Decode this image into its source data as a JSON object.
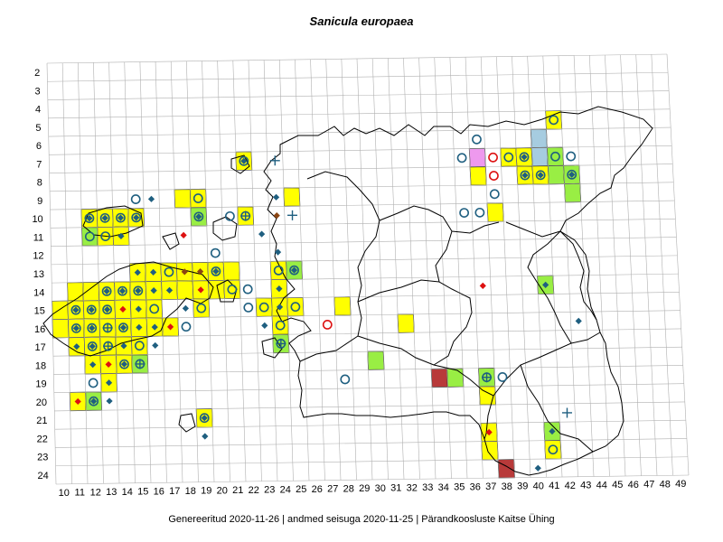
{
  "title": "Sanicula europaea",
  "footer": "Genereeritud 2020-11-26  |  andmed seisuga 2020-11-25  |  Pärandkoosluste Kaitse Ühing",
  "grid": {
    "row_labels": [
      "2",
      "3",
      "4",
      "5",
      "6",
      "7",
      "8",
      "9",
      "10",
      "11",
      "12",
      "13",
      "14",
      "15",
      "16",
      "17",
      "18",
      "19",
      "20",
      "21",
      "22",
      "23",
      "24"
    ],
    "col_labels": [
      "10",
      "11",
      "12",
      "13",
      "14",
      "15",
      "16",
      "17",
      "18",
      "19",
      "20",
      "21",
      "22",
      "23",
      "24",
      "25",
      "26",
      "27",
      "28",
      "29",
      "30",
      "31",
      "32",
      "33",
      "34",
      "35",
      "36",
      "37",
      "38",
      "39",
      "40",
      "41",
      "42",
      "43",
      "44",
      "45",
      "46",
      "47",
      "48",
      "49"
    ]
  },
  "colors": {
    "yellow": "#ffff00",
    "green": "#99ee44",
    "lightblue": "#a6cce0",
    "pink": "#ee99ee",
    "darkred": "#b83a3a",
    "marker_blue": "#1f5f80",
    "marker_red": "#dd1111",
    "marker_brown": "#8b4513"
  },
  "cells": [
    {
      "c": 12,
      "r": 10,
      "fill": "yellow",
      "m": [
        "ring",
        "diamond"
      ]
    },
    {
      "c": 13,
      "r": 10,
      "fill": "yellow",
      "m": [
        "ring",
        "diamond"
      ]
    },
    {
      "c": 14,
      "r": 10,
      "fill": "yellow",
      "m": [
        "ring",
        "diamond"
      ]
    },
    {
      "c": 15,
      "r": 10,
      "fill": "yellow",
      "m": [
        "ring",
        "diamond"
      ]
    },
    {
      "c": 12,
      "r": 11,
      "fill": "green",
      "m": [
        "ring"
      ]
    },
    {
      "c": 13,
      "r": 11,
      "fill": "yellow",
      "m": [
        "ring"
      ]
    },
    {
      "c": 14,
      "r": 11,
      "fill": "yellow",
      "m": [
        "diamond"
      ]
    },
    {
      "c": 15,
      "r": 9,
      "fill": "none",
      "m": [
        "ring"
      ]
    },
    {
      "c": 16,
      "r": 9,
      "fill": "none",
      "m": [
        "diamond"
      ]
    },
    {
      "c": 18,
      "r": 9,
      "fill": "yellow",
      "m": []
    },
    {
      "c": 19,
      "r": 9,
      "fill": "yellow",
      "m": [
        "ring"
      ]
    },
    {
      "c": 19,
      "r": 10,
      "fill": "green",
      "m": [
        "ring",
        "diamond"
      ]
    },
    {
      "c": 18,
      "r": 11,
      "fill": "none",
      "m": [
        "rdiamond"
      ]
    },
    {
      "c": 22,
      "r": 7,
      "fill": "yellow",
      "m": [
        "ring",
        "diamond"
      ]
    },
    {
      "c": 24,
      "r": 7,
      "fill": "none",
      "m": [
        "cross"
      ]
    },
    {
      "c": 24,
      "r": 9,
      "fill": "none",
      "m": [
        "diamond"
      ]
    },
    {
      "c": 25,
      "r": 9,
      "fill": "yellow",
      "m": []
    },
    {
      "c": 21,
      "r": 10,
      "fill": "none",
      "m": [
        "ring"
      ]
    },
    {
      "c": 22,
      "r": 10,
      "fill": "yellow",
      "m": [
        "ring",
        "cross"
      ]
    },
    {
      "c": 24,
      "r": 10,
      "fill": "none",
      "m": [
        "bdiamond"
      ]
    },
    {
      "c": 25,
      "r": 10,
      "fill": "none",
      "m": [
        "cross"
      ]
    },
    {
      "c": 23,
      "r": 11,
      "fill": "none",
      "m": [
        "diamond"
      ]
    },
    {
      "c": 20,
      "r": 12,
      "fill": "none",
      "m": [
        "ring"
      ]
    },
    {
      "c": 24,
      "r": 12,
      "fill": "none",
      "m": [
        "diamond"
      ]
    },
    {
      "c": 15,
      "r": 13,
      "fill": "yellow",
      "m": [
        "diamond"
      ]
    },
    {
      "c": 16,
      "r": 13,
      "fill": "yellow",
      "m": [
        "diamond"
      ]
    },
    {
      "c": 17,
      "r": 13,
      "fill": "yellow",
      "m": [
        "ring"
      ]
    },
    {
      "c": 18,
      "r": 13,
      "fill": "yellow",
      "m": [
        "bdiamond"
      ]
    },
    {
      "c": 19,
      "r": 13,
      "fill": "yellow",
      "m": [
        "bdiamond"
      ]
    },
    {
      "c": 20,
      "r": 13,
      "fill": "yellow",
      "m": [
        "ring",
        "diamond"
      ]
    },
    {
      "c": 21,
      "r": 13,
      "fill": "yellow",
      "m": []
    },
    {
      "c": 24,
      "r": 13,
      "fill": "yellow",
      "m": [
        "ring"
      ]
    },
    {
      "c": 25,
      "r": 13,
      "fill": "green",
      "m": [
        "ring",
        "diamond"
      ]
    },
    {
      "c": 11,
      "r": 14,
      "fill": "yellow",
      "m": []
    },
    {
      "c": 12,
      "r": 14,
      "fill": "yellow",
      "m": []
    },
    {
      "c": 13,
      "r": 14,
      "fill": "yellow",
      "m": [
        "ring",
        "diamond"
      ]
    },
    {
      "c": 14,
      "r": 14,
      "fill": "yellow",
      "m": [
        "ring",
        "diamond"
      ]
    },
    {
      "c": 15,
      "r": 14,
      "fill": "yellow",
      "m": [
        "ring",
        "diamond"
      ]
    },
    {
      "c": 16,
      "r": 14,
      "fill": "yellow",
      "m": [
        "diamond"
      ]
    },
    {
      "c": 17,
      "r": 14,
      "fill": "yellow",
      "m": [
        "diamond"
      ]
    },
    {
      "c": 18,
      "r": 14,
      "fill": "yellow",
      "m": []
    },
    {
      "c": 19,
      "r": 14,
      "fill": "yellow",
      "m": [
        "rdiamond"
      ]
    },
    {
      "c": 20,
      "r": 14,
      "fill": "yellow",
      "m": []
    },
    {
      "c": 21,
      "r": 14,
      "fill": "yellow",
      "m": [
        "ring"
      ]
    },
    {
      "c": 22,
      "r": 14,
      "fill": "none",
      "m": [
        "ring"
      ]
    },
    {
      "c": 24,
      "r": 14,
      "fill": "yellow",
      "m": [
        "diamond"
      ]
    },
    {
      "c": 10,
      "r": 15,
      "fill": "yellow",
      "m": []
    },
    {
      "c": 11,
      "r": 15,
      "fill": "yellow",
      "m": [
        "ring",
        "diamond"
      ]
    },
    {
      "c": 12,
      "r": 15,
      "fill": "yellow",
      "m": [
        "ring",
        "diamond"
      ]
    },
    {
      "c": 13,
      "r": 15,
      "fill": "yellow",
      "m": [
        "ring",
        "diamond"
      ]
    },
    {
      "c": 14,
      "r": 15,
      "fill": "yellow",
      "m": [
        "rdiamond"
      ]
    },
    {
      "c": 15,
      "r": 15,
      "fill": "yellow",
      "m": [
        "diamond"
      ]
    },
    {
      "c": 16,
      "r": 15,
      "fill": "yellow",
      "m": [
        "ring"
      ]
    },
    {
      "c": 18,
      "r": 15,
      "fill": "none",
      "m": [
        "diamond"
      ]
    },
    {
      "c": 19,
      "r": 15,
      "fill": "yellow",
      "m": [
        "ring"
      ]
    },
    {
      "c": 22,
      "r": 15,
      "fill": "none",
      "m": [
        "ring"
      ]
    },
    {
      "c": 23,
      "r": 15,
      "fill": "yellow",
      "m": [
        "ring"
      ]
    },
    {
      "c": 24,
      "r": 15,
      "fill": "yellow",
      "m": [
        "diamond"
      ]
    },
    {
      "c": 25,
      "r": 15,
      "fill": "yellow",
      "m": [
        "ring"
      ]
    },
    {
      "c": 10,
      "r": 16,
      "fill": "yellow",
      "m": []
    },
    {
      "c": 11,
      "r": 16,
      "fill": "yellow",
      "m": [
        "ring",
        "diamond"
      ]
    },
    {
      "c": 12,
      "r": 16,
      "fill": "yellow",
      "m": [
        "ring",
        "diamond"
      ]
    },
    {
      "c": 13,
      "r": 16,
      "fill": "yellow",
      "m": [
        "ring",
        "cross"
      ]
    },
    {
      "c": 14,
      "r": 16,
      "fill": "yellow",
      "m": [
        "ring",
        "diamond"
      ]
    },
    {
      "c": 15,
      "r": 16,
      "fill": "yellow",
      "m": [
        "diamond"
      ]
    },
    {
      "c": 16,
      "r": 16,
      "fill": "yellow",
      "m": [
        "diamond"
      ]
    },
    {
      "c": 17,
      "r": 16,
      "fill": "yellow",
      "m": [
        "rdiamond"
      ]
    },
    {
      "c": 18,
      "r": 16,
      "fill": "none",
      "m": [
        "ring"
      ]
    },
    {
      "c": 23,
      "r": 16,
      "fill": "none",
      "m": [
        "diamond"
      ]
    },
    {
      "c": 24,
      "r": 16,
      "fill": "yellow",
      "m": [
        "ring"
      ]
    },
    {
      "c": 11,
      "r": 17,
      "fill": "yellow",
      "m": [
        "diamond"
      ]
    },
    {
      "c": 12,
      "r": 17,
      "fill": "yellow",
      "m": [
        "ring",
        "diamond"
      ]
    },
    {
      "c": 13,
      "r": 17,
      "fill": "yellow",
      "m": [
        "ring",
        "cross"
      ]
    },
    {
      "c": 14,
      "r": 17,
      "fill": "yellow",
      "m": [
        "diamond"
      ]
    },
    {
      "c": 15,
      "r": 17,
      "fill": "yellow",
      "m": [
        "ring"
      ]
    },
    {
      "c": 16,
      "r": 17,
      "fill": "none",
      "m": [
        "diamond"
      ]
    },
    {
      "c": 24,
      "r": 17,
      "fill": "green",
      "m": [
        "ring",
        "cross"
      ]
    },
    {
      "c": 12,
      "r": 18,
      "fill": "yellow",
      "m": [
        "diamond"
      ]
    },
    {
      "c": 13,
      "r": 18,
      "fill": "yellow",
      "m": [
        "rdiamond"
      ]
    },
    {
      "c": 14,
      "r": 18,
      "fill": "yellow",
      "m": [
        "ring",
        "diamond"
      ]
    },
    {
      "c": 15,
      "r": 18,
      "fill": "green",
      "m": [
        "ring",
        "cross"
      ]
    },
    {
      "c": 12,
      "r": 19,
      "fill": "none",
      "m": [
        "ring"
      ]
    },
    {
      "c": 13,
      "r": 19,
      "fill": "yellow",
      "m": [
        "diamond"
      ]
    },
    {
      "c": 11,
      "r": 20,
      "fill": "yellow",
      "m": [
        "rdiamond"
      ]
    },
    {
      "c": 12,
      "r": 20,
      "fill": "green",
      "m": [
        "ring",
        "diamond"
      ]
    },
    {
      "c": 13,
      "r": 20,
      "fill": "none",
      "m": [
        "diamond"
      ]
    },
    {
      "c": 19,
      "r": 21,
      "fill": "yellow",
      "m": [
        "ring",
        "diamond"
      ]
    },
    {
      "c": 19,
      "r": 22,
      "fill": "none",
      "m": [
        "diamond"
      ]
    },
    {
      "c": 27,
      "r": 16,
      "fill": "none",
      "m": [
        "rring"
      ]
    },
    {
      "c": 28,
      "r": 15,
      "fill": "yellow",
      "m": []
    },
    {
      "c": 28,
      "r": 19,
      "fill": "none",
      "m": [
        "ring"
      ]
    },
    {
      "c": 30,
      "r": 18,
      "fill": "green",
      "m": []
    },
    {
      "c": 32,
      "r": 16,
      "fill": "yellow",
      "m": []
    },
    {
      "c": 34,
      "r": 19,
      "fill": "darkred",
      "m": []
    },
    {
      "c": 35,
      "r": 19,
      "fill": "green",
      "m": []
    },
    {
      "c": 37,
      "r": 14,
      "fill": "none",
      "m": [
        "rdiamond"
      ]
    },
    {
      "c": 36,
      "r": 10,
      "fill": "none",
      "m": [
        "ring"
      ]
    },
    {
      "c": 37,
      "r": 10,
      "fill": "none",
      "m": [
        "ring"
      ]
    },
    {
      "c": 38,
      "r": 10,
      "fill": "yellow",
      "m": []
    },
    {
      "c": 38,
      "r": 9,
      "fill": "none",
      "m": [
        "ring"
      ]
    },
    {
      "c": 38,
      "r": 8,
      "fill": "none",
      "m": [
        "rring"
      ]
    },
    {
      "c": 38,
      "r": 7,
      "fill": "none",
      "m": [
        "rring"
      ]
    },
    {
      "c": 37,
      "r": 6,
      "fill": "none",
      "m": [
        "ring"
      ]
    },
    {
      "c": 36,
      "r": 7,
      "fill": "none",
      "m": [
        "ring"
      ]
    },
    {
      "c": 37,
      "r": 7,
      "fill": "pink",
      "m": []
    },
    {
      "c": 37,
      "r": 8,
      "fill": "yellow",
      "m": []
    },
    {
      "c": 39,
      "r": 7,
      "fill": "yellow",
      "m": [
        "ring"
      ]
    },
    {
      "c": 40,
      "r": 7,
      "fill": "yellow",
      "m": [
        "ring",
        "diamond"
      ]
    },
    {
      "c": 41,
      "r": 6,
      "fill": "lightblue",
      "m": []
    },
    {
      "c": 41,
      "r": 7,
      "fill": "lightblue",
      "m": []
    },
    {
      "c": 42,
      "r": 5,
      "fill": "yellow",
      "m": [
        "ring"
      ]
    },
    {
      "c": 42,
      "r": 7,
      "fill": "green",
      "m": [
        "ring"
      ]
    },
    {
      "c": 43,
      "r": 7,
      "fill": "none",
      "m": [
        "ring"
      ]
    },
    {
      "c": 40,
      "r": 8,
      "fill": "yellow",
      "m": [
        "ring",
        "diamond"
      ]
    },
    {
      "c": 41,
      "r": 8,
      "fill": "yellow",
      "m": [
        "ring",
        "diamond"
      ]
    },
    {
      "c": 42,
      "r": 8,
      "fill": "green",
      "m": []
    },
    {
      "c": 43,
      "r": 8,
      "fill": "green",
      "m": [
        "ring",
        "diamond"
      ]
    },
    {
      "c": 43,
      "r": 9,
      "fill": "green",
      "m": []
    },
    {
      "c": 41,
      "r": 14,
      "fill": "green",
      "m": [
        "diamond"
      ]
    },
    {
      "c": 43,
      "r": 16,
      "fill": "none",
      "m": [
        "diamond"
      ]
    },
    {
      "c": 37,
      "r": 19,
      "fill": "green",
      "m": [
        "ring",
        "cross"
      ]
    },
    {
      "c": 38,
      "r": 19,
      "fill": "none",
      "m": [
        "ring"
      ]
    },
    {
      "c": 37,
      "r": 20,
      "fill": "yellow",
      "m": []
    },
    {
      "c": 42,
      "r": 21,
      "fill": "none",
      "m": [
        "cross"
      ]
    },
    {
      "c": 41,
      "r": 22,
      "fill": "green",
      "m": [
        "diamond"
      ]
    },
    {
      "c": 41,
      "r": 23,
      "fill": "yellow",
      "m": [
        "ring"
      ]
    },
    {
      "c": 37,
      "r": 22,
      "fill": "yellow",
      "m": [
        "rdiamond"
      ]
    },
    {
      "c": 37,
      "r": 23,
      "fill": "yellow",
      "m": []
    },
    {
      "c": 38,
      "r": 24,
      "fill": "darkred",
      "m": []
    },
    {
      "c": 40,
      "r": 24,
      "fill": "none",
      "m": [
        "diamond"
      ]
    }
  ]
}
